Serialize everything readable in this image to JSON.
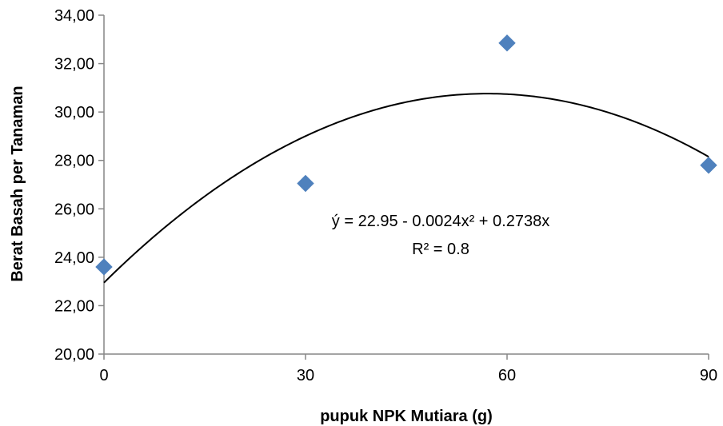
{
  "chart_data": {
    "type": "scatter",
    "xlabel": "pupuk NPK Mutiara (g)",
    "ylabel": "Berat Basah per Tanaman",
    "x_ticks": [
      "0",
      "30",
      "60",
      "90"
    ],
    "y_ticks": [
      "20,00",
      "22,00",
      "24,00",
      "26,00",
      "28,00",
      "30,00",
      "32,00",
      "34,00"
    ],
    "xlim": [
      0,
      90
    ],
    "ylim": [
      20,
      34
    ],
    "grid": false,
    "legend": "none",
    "series": [
      {
        "marker": "diamond",
        "color": "#4f81bd",
        "points": [
          {
            "x": 0,
            "y": 23.6
          },
          {
            "x": 30,
            "y": 27.05
          },
          {
            "x": 60,
            "y": 32.85
          },
          {
            "x": 90,
            "y": 27.8
          }
        ]
      }
    ],
    "trendline": {
      "type": "polynomial",
      "intercept": 22.95,
      "a": -0.0024,
      "b": 0.2738,
      "color": "#000000"
    },
    "annotations": {
      "equation": "ý = 22.95 - 0.0024x² + 0.2738x",
      "r_squared": "R² = 0.8"
    }
  }
}
